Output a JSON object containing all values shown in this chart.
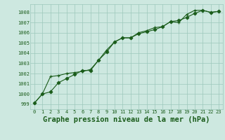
{
  "title": "Graphe pression niveau de la mer (hPa)",
  "x_labels": [
    0,
    1,
    2,
    3,
    4,
    5,
    6,
    7,
    8,
    9,
    10,
    11,
    12,
    13,
    14,
    15,
    16,
    17,
    18,
    19,
    20,
    21,
    22,
    23
  ],
  "ylim": [
    998.5,
    1008.8
  ],
  "xlim": [
    -0.5,
    23.5
  ],
  "yticks": [
    999,
    1000,
    1001,
    1002,
    1003,
    1004,
    1005,
    1006,
    1007,
    1008
  ],
  "series1_x": [
    0,
    1,
    2,
    3,
    4,
    5,
    6,
    7,
    8,
    9,
    10,
    11,
    12,
    13,
    14,
    15,
    16,
    17,
    18,
    19,
    20,
    21,
    22,
    23
  ],
  "series1_y": [
    999.1,
    1000.0,
    1001.7,
    1001.8,
    1002.0,
    1002.1,
    1002.2,
    1002.4,
    1003.3,
    1004.3,
    1005.1,
    1005.5,
    1005.5,
    1006.0,
    1006.2,
    1006.5,
    1006.6,
    1007.1,
    1007.0,
    1007.8,
    1008.2,
    1008.2,
    1008.0,
    1008.1
  ],
  "series2_x": [
    0,
    1,
    2,
    3,
    4,
    5,
    6,
    7,
    8,
    9,
    10,
    11,
    12,
    13,
    14,
    15,
    16,
    17,
    18,
    19,
    20,
    21,
    22,
    23
  ],
  "series2_y": [
    999.1,
    1000.0,
    1000.2,
    1001.1,
    1001.5,
    1001.9,
    1002.3,
    1002.3,
    1003.3,
    1004.1,
    1005.1,
    1005.5,
    1005.5,
    1005.9,
    1006.1,
    1006.3,
    1006.6,
    1007.1,
    1007.2,
    1007.5,
    1007.9,
    1008.2,
    1008.0,
    1008.1
  ],
  "dark_green": "#1a5c1a",
  "mid_green": "#2d7a2d",
  "bg_color": "#cde8e0",
  "grid_color": "#9dc8bb",
  "title_fontsize": 7.5,
  "tick_fontsize": 5.0
}
